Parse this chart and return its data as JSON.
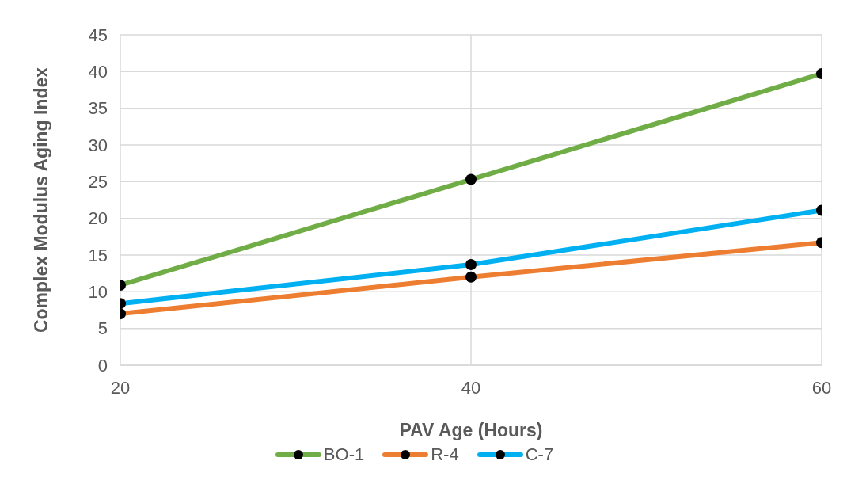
{
  "chart_data": {
    "type": "line",
    "xlabel": "PAV Age (Hours)",
    "ylabel": "Complex Modulus Aging Index",
    "x": [
      20,
      40,
      60
    ],
    "series": [
      {
        "name": "BO-1",
        "color": "#70ad47",
        "values": [
          10.9,
          25.3,
          39.7
        ]
      },
      {
        "name": "R-4",
        "color": "#ed7d31",
        "values": [
          7.0,
          12.0,
          16.7
        ]
      },
      {
        "name": "C-7",
        "color": "#00b0f0",
        "values": [
          8.4,
          13.7,
          21.1
        ]
      }
    ],
    "xlim": [
      20,
      60
    ],
    "xticks": [
      20,
      40,
      60
    ],
    "ylim": [
      0,
      45
    ],
    "yticks": [
      0,
      5,
      10,
      15,
      20,
      25,
      30,
      35,
      40,
      45
    ],
    "grid": true,
    "legend": "bottom",
    "marker": "circle",
    "line_style": "solid"
  }
}
